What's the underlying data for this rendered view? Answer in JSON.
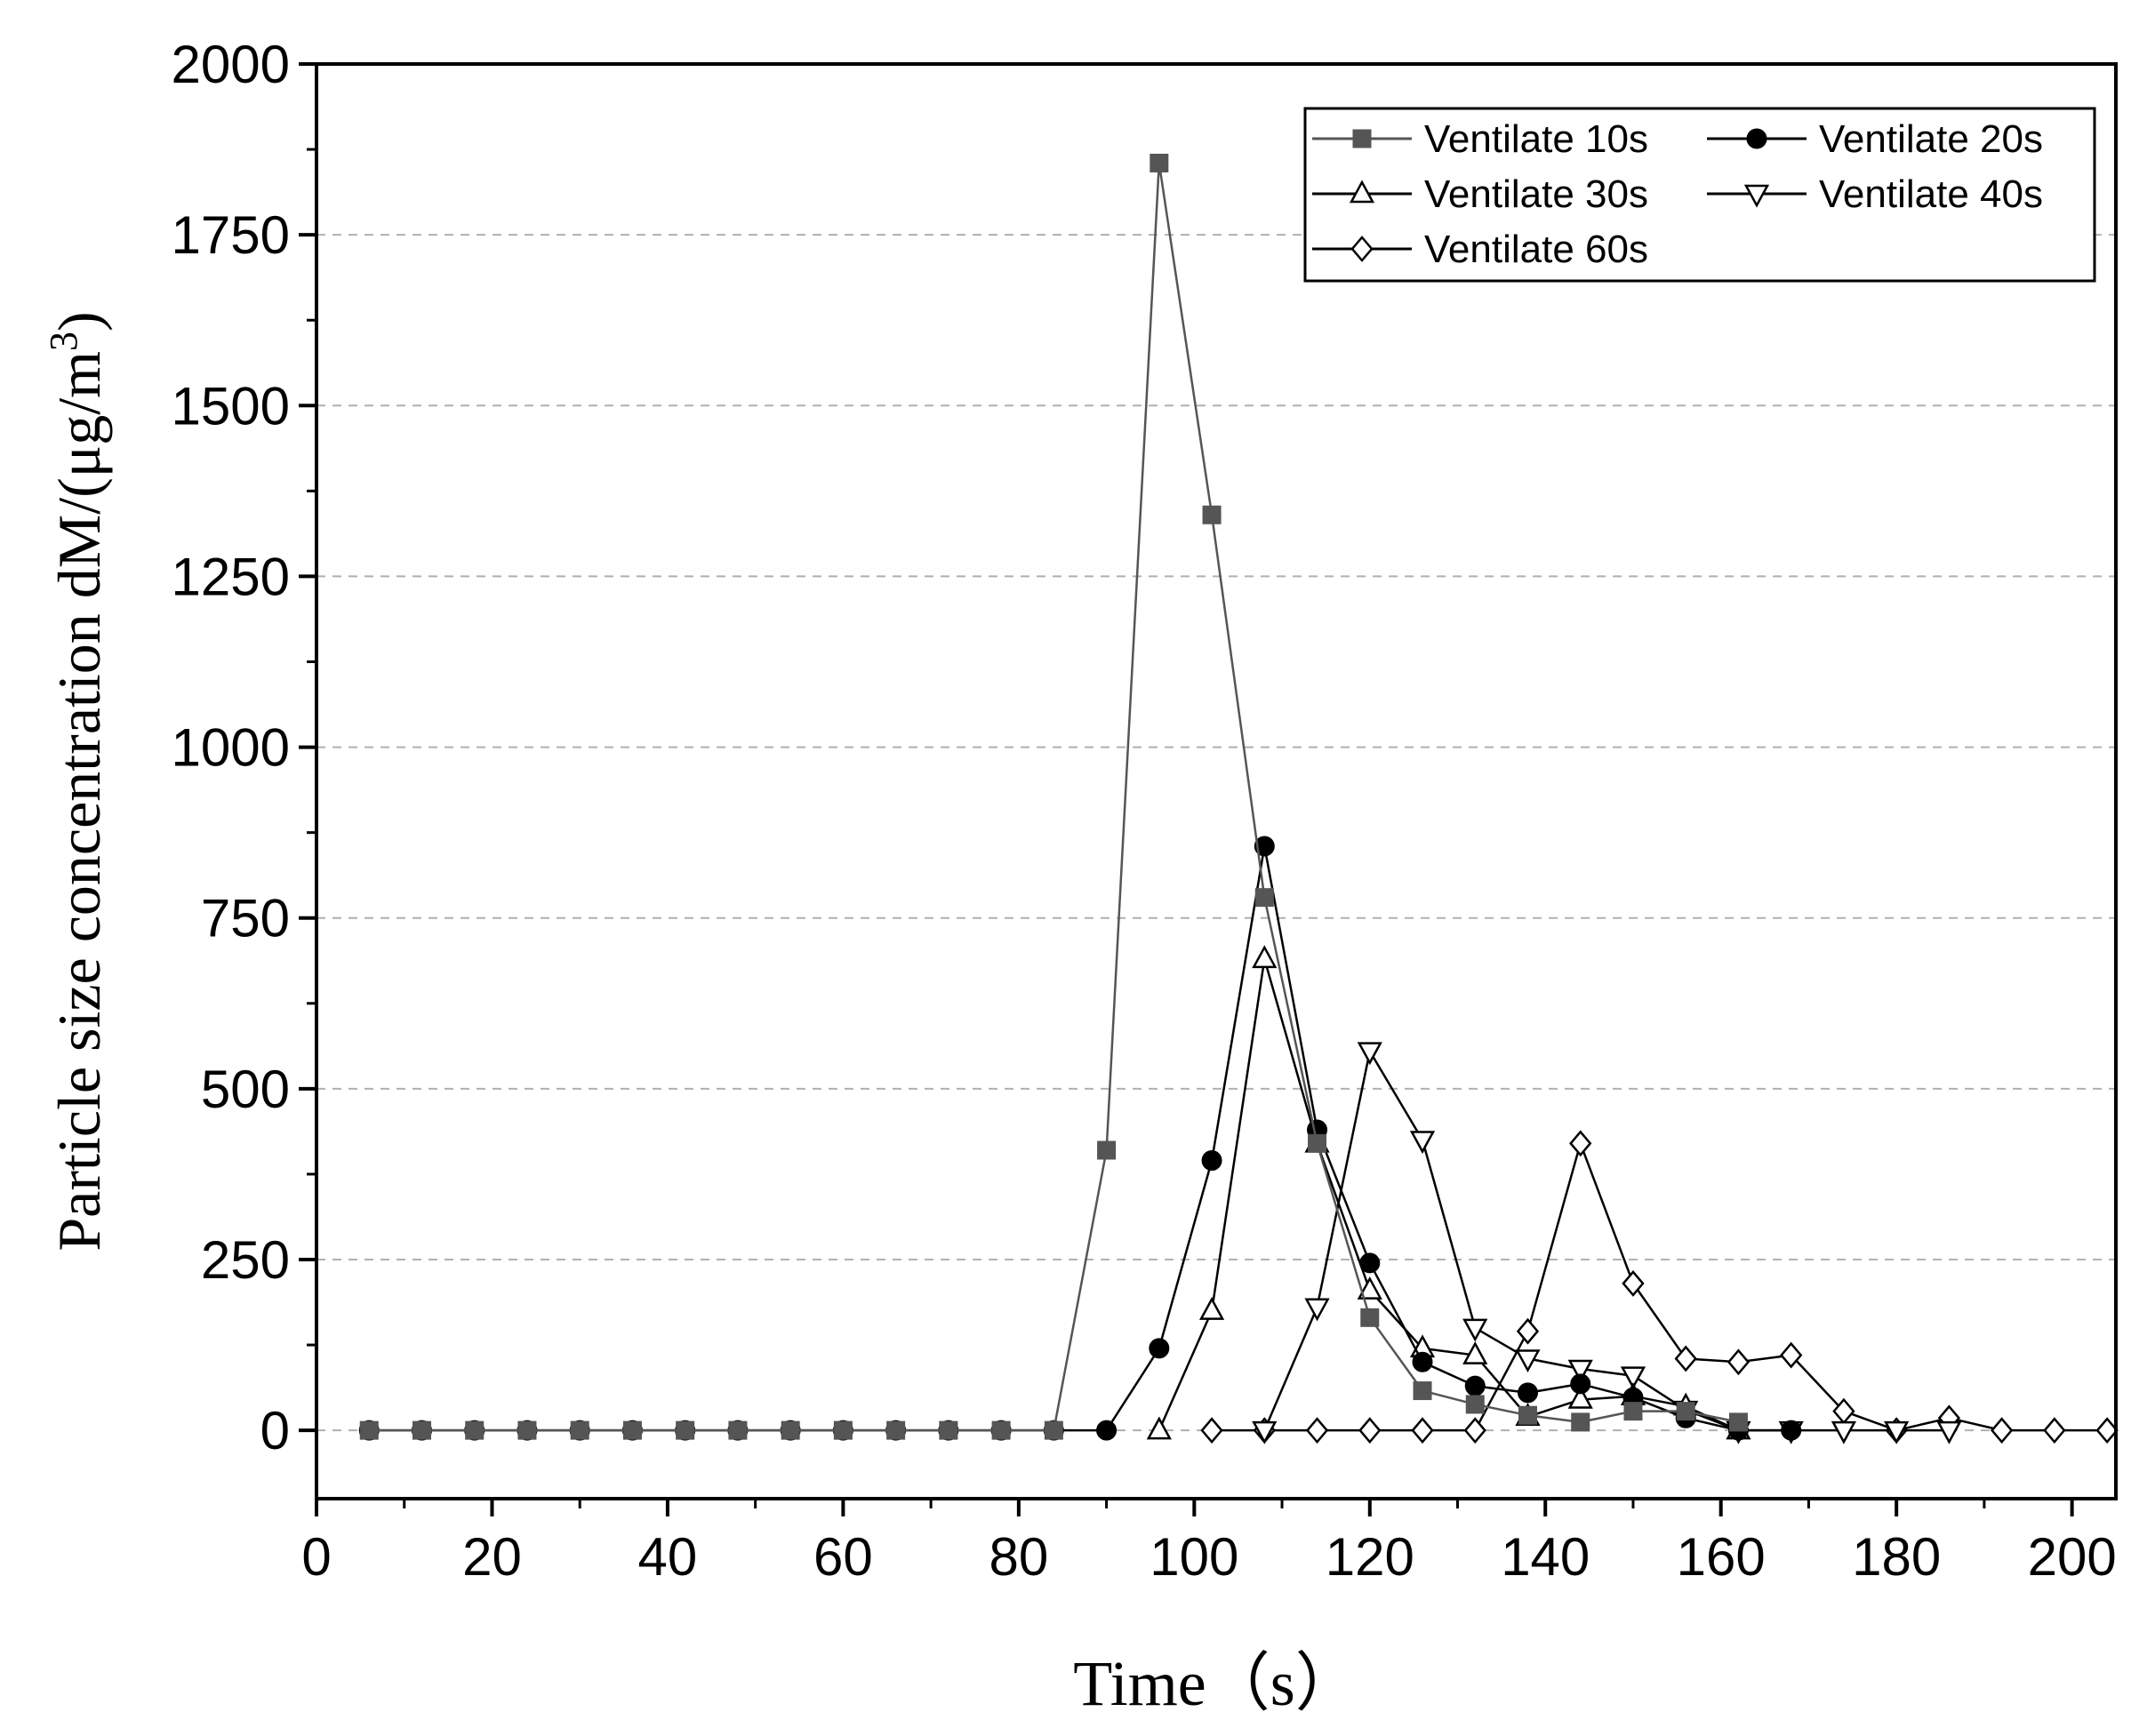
{
  "chart_data": {
    "type": "line",
    "title": "",
    "xlabel": "Time（s）",
    "ylabel": "Particle size concentration dM/(μg/m³)",
    "ylabel_parts": {
      "main": "Particle size concentration dM/(μg/m",
      "sup": "3",
      "end": ")"
    },
    "xlim": [
      0,
      205
    ],
    "ylim": [
      -100,
      2000
    ],
    "xticks": [
      0,
      20,
      40,
      60,
      80,
      100,
      120,
      140,
      160,
      180,
      200
    ],
    "yticks": [
      0,
      250,
      500,
      750,
      1000,
      1250,
      1500,
      1750,
      2000
    ],
    "grid": "horizontal dashed",
    "legend_position": "top-right",
    "series": [
      {
        "name": "Ventilate 10s",
        "marker": "square-filled",
        "color": "#555555",
        "points": [
          [
            6,
            0
          ],
          [
            12,
            0
          ],
          [
            18,
            0
          ],
          [
            24,
            0
          ],
          [
            30,
            0
          ],
          [
            36,
            0
          ],
          [
            42,
            0
          ],
          [
            48,
            0
          ],
          [
            54,
            0
          ],
          [
            60,
            0
          ],
          [
            66,
            0
          ],
          [
            72,
            0
          ],
          [
            78,
            0
          ],
          [
            84,
            0
          ],
          [
            90,
            410
          ],
          [
            96,
            1855
          ],
          [
            102,
            1340
          ],
          [
            108,
            780
          ],
          [
            114,
            420
          ],
          [
            120,
            165
          ],
          [
            126,
            58
          ],
          [
            132,
            38
          ],
          [
            138,
            22
          ],
          [
            144,
            12
          ],
          [
            150,
            28
          ],
          [
            156,
            28
          ],
          [
            162,
            12
          ]
        ]
      },
      {
        "name": "Ventilate 20s",
        "marker": "circle-filled",
        "color": "#000000",
        "points": [
          [
            6,
            0
          ],
          [
            12,
            0
          ],
          [
            18,
            0
          ],
          [
            24,
            0
          ],
          [
            30,
            0
          ],
          [
            36,
            0
          ],
          [
            42,
            0
          ],
          [
            48,
            0
          ],
          [
            54,
            0
          ],
          [
            60,
            0
          ],
          [
            66,
            0
          ],
          [
            72,
            0
          ],
          [
            78,
            0
          ],
          [
            84,
            0
          ],
          [
            90,
            0
          ],
          [
            96,
            120
          ],
          [
            102,
            395
          ],
          [
            108,
            855
          ],
          [
            114,
            440
          ],
          [
            120,
            245
          ],
          [
            126,
            100
          ],
          [
            132,
            65
          ],
          [
            138,
            55
          ],
          [
            144,
            68
          ],
          [
            150,
            48
          ],
          [
            156,
            18
          ],
          [
            162,
            0
          ],
          [
            168,
            0
          ]
        ]
      },
      {
        "name": "Ventilate 30s",
        "marker": "triangle-up-open",
        "color": "#000000",
        "points": [
          [
            96,
            0
          ],
          [
            102,
            175
          ],
          [
            108,
            690
          ],
          [
            114,
            420
          ],
          [
            120,
            205
          ],
          [
            126,
            120
          ],
          [
            132,
            110
          ],
          [
            138,
            20
          ],
          [
            144,
            45
          ],
          [
            150,
            50
          ],
          [
            156,
            35
          ],
          [
            162,
            0
          ]
        ]
      },
      {
        "name": "Ventilate 40s",
        "marker": "triangle-down-open",
        "color": "#000000",
        "points": [
          [
            108,
            0
          ],
          [
            114,
            180
          ],
          [
            120,
            555
          ],
          [
            126,
            425
          ],
          [
            132,
            150
          ],
          [
            138,
            105
          ],
          [
            144,
            90
          ],
          [
            150,
            80
          ],
          [
            156,
            30
          ],
          [
            162,
            0
          ],
          [
            168,
            0
          ],
          [
            174,
            0
          ],
          [
            180,
            0
          ],
          [
            186,
            0
          ]
        ]
      },
      {
        "name": "Ventilate 60s",
        "marker": "diamond-open",
        "color": "#000000",
        "points": [
          [
            102,
            0
          ],
          [
            108,
            0
          ],
          [
            114,
            0
          ],
          [
            120,
            0
          ],
          [
            126,
            0
          ],
          [
            132,
            0
          ],
          [
            138,
            145
          ],
          [
            144,
            420
          ],
          [
            150,
            215
          ],
          [
            156,
            105
          ],
          [
            162,
            100
          ],
          [
            168,
            110
          ],
          [
            174,
            28
          ],
          [
            180,
            0
          ],
          [
            186,
            18
          ],
          [
            192,
            0
          ],
          [
            198,
            0
          ],
          [
            204,
            0
          ]
        ]
      }
    ]
  }
}
